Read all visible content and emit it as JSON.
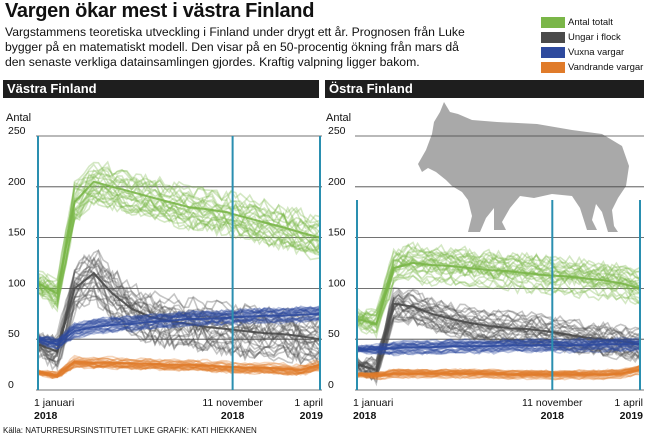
{
  "header": {
    "title": "Vargen ökar mest i västra Finland",
    "lead": "Vargstammens teoretiska utveckling i Finland under drygt ett år. Prognosen från Luke bygger på en matematiskt modell. Den visar på en 50-procentig ökning från mars då den senaste verkliga datainsamlingen gjordes. Kraftig valpning ligger bakom."
  },
  "legend": [
    {
      "label": "Antal totalt",
      "color": "#7ab648"
    },
    {
      "label": "Ungar i flock",
      "color": "#4a4a4a"
    },
    {
      "label": "Vuxna vargar",
      "color": "#2e4a9e"
    },
    {
      "label": "Vandrande vargar",
      "color": "#e07b2a"
    }
  ],
  "panels": {
    "west": {
      "title": "Västra Finland"
    },
    "east": {
      "title": "Östra Finland"
    }
  },
  "credit": "Källa: NATURRESURSINSTITUTET LUKE GRAFIK: KATI HIEKKANEN",
  "icon": "wolf-silhouette-icon",
  "chart_data": [
    {
      "type": "line",
      "title": "Västra Finland",
      "ylabel": "Antal",
      "ylim": [
        0,
        250
      ],
      "yticks": [
        "0",
        "50",
        "100",
        "150",
        "200",
        "250"
      ],
      "xticks": [
        {
          "line1": "1 januari",
          "line2": "2018"
        },
        {
          "line1": "11 november",
          "line2": "2018"
        },
        {
          "line1": "1 april",
          "line2": "2019"
        }
      ],
      "x": [
        "2018-01-01",
        "2018-02-01",
        "2018-03-01",
        "2018-04-01",
        "2018-05-01",
        "2018-06-01",
        "2018-07-01",
        "2018-08-01",
        "2018-09-01",
        "2018-10-01",
        "2018-11-01",
        "2018-12-01",
        "2019-01-01",
        "2019-02-01",
        "2019-03-01",
        "2019-04-01"
      ],
      "series": [
        {
          "name": "Antal totalt",
          "color": "#7ab648",
          "values": [
            105,
            95,
            185,
            205,
            200,
            195,
            190,
            185,
            180,
            178,
            175,
            170,
            165,
            160,
            155,
            150
          ],
          "spread": 18
        },
        {
          "name": "Ungar i flock",
          "color": "#4a4a4a",
          "values": [
            45,
            38,
            100,
            115,
            95,
            80,
            72,
            68,
            65,
            62,
            60,
            58,
            56,
            55,
            53,
            50
          ],
          "spread": 22
        },
        {
          "name": "Vuxna vargar",
          "color": "#2e4a9e",
          "values": [
            50,
            45,
            58,
            62,
            64,
            65,
            67,
            68,
            70,
            70,
            71,
            72,
            73,
            73,
            74,
            75
          ],
          "spread": 7
        },
        {
          "name": "Vandrande vargar",
          "color": "#e07b2a",
          "values": [
            18,
            15,
            28,
            27,
            27,
            26,
            26,
            25,
            25,
            24,
            23,
            22,
            22,
            21,
            20,
            25
          ],
          "spread": 5
        }
      ]
    },
    {
      "type": "line",
      "title": "Östra Finland",
      "ylabel": "Antal",
      "ylim": [
        0,
        250
      ],
      "yticks": [
        "0",
        "50",
        "100",
        "150",
        "200",
        "250"
      ],
      "xticks": [
        {
          "line1": "1 januari",
          "line2": "2018"
        },
        {
          "line1": "11 november",
          "line2": "2018"
        },
        {
          "line1": "1 april",
          "line2": "2019"
        }
      ],
      "x": [
        "2018-01-01",
        "2018-02-01",
        "2018-03-01",
        "2018-04-01",
        "2018-05-01",
        "2018-06-01",
        "2018-07-01",
        "2018-08-01",
        "2018-09-01",
        "2018-10-01",
        "2018-11-01",
        "2018-12-01",
        "2019-01-01",
        "2019-02-01",
        "2019-03-01",
        "2019-04-01"
      ],
      "series": [
        {
          "name": "Antal totalt",
          "color": "#7ab648",
          "values": [
            70,
            65,
            120,
            125,
            123,
            122,
            120,
            118,
            117,
            115,
            113,
            112,
            110,
            108,
            105,
            100
          ],
          "spread": 16
        },
        {
          "name": "Ungar i flock",
          "color": "#4a4a4a",
          "values": [
            25,
            20,
            85,
            82,
            75,
            70,
            66,
            63,
            61,
            60,
            58,
            55,
            52,
            50,
            48,
            45
          ],
          "spread": 14
        },
        {
          "name": "Vuxna vargar",
          "color": "#2e4a9e",
          "values": [
            40,
            40,
            41,
            42,
            42,
            43,
            43,
            43,
            44,
            44,
            44,
            44,
            44,
            45,
            45,
            45
          ],
          "spread": 6
        },
        {
          "name": "Vandrande vargar",
          "color": "#e07b2a",
          "values": [
            15,
            14,
            16,
            16,
            16,
            16,
            16,
            16,
            15,
            15,
            15,
            15,
            15,
            15,
            16,
            20
          ],
          "spread": 4
        }
      ]
    }
  ]
}
